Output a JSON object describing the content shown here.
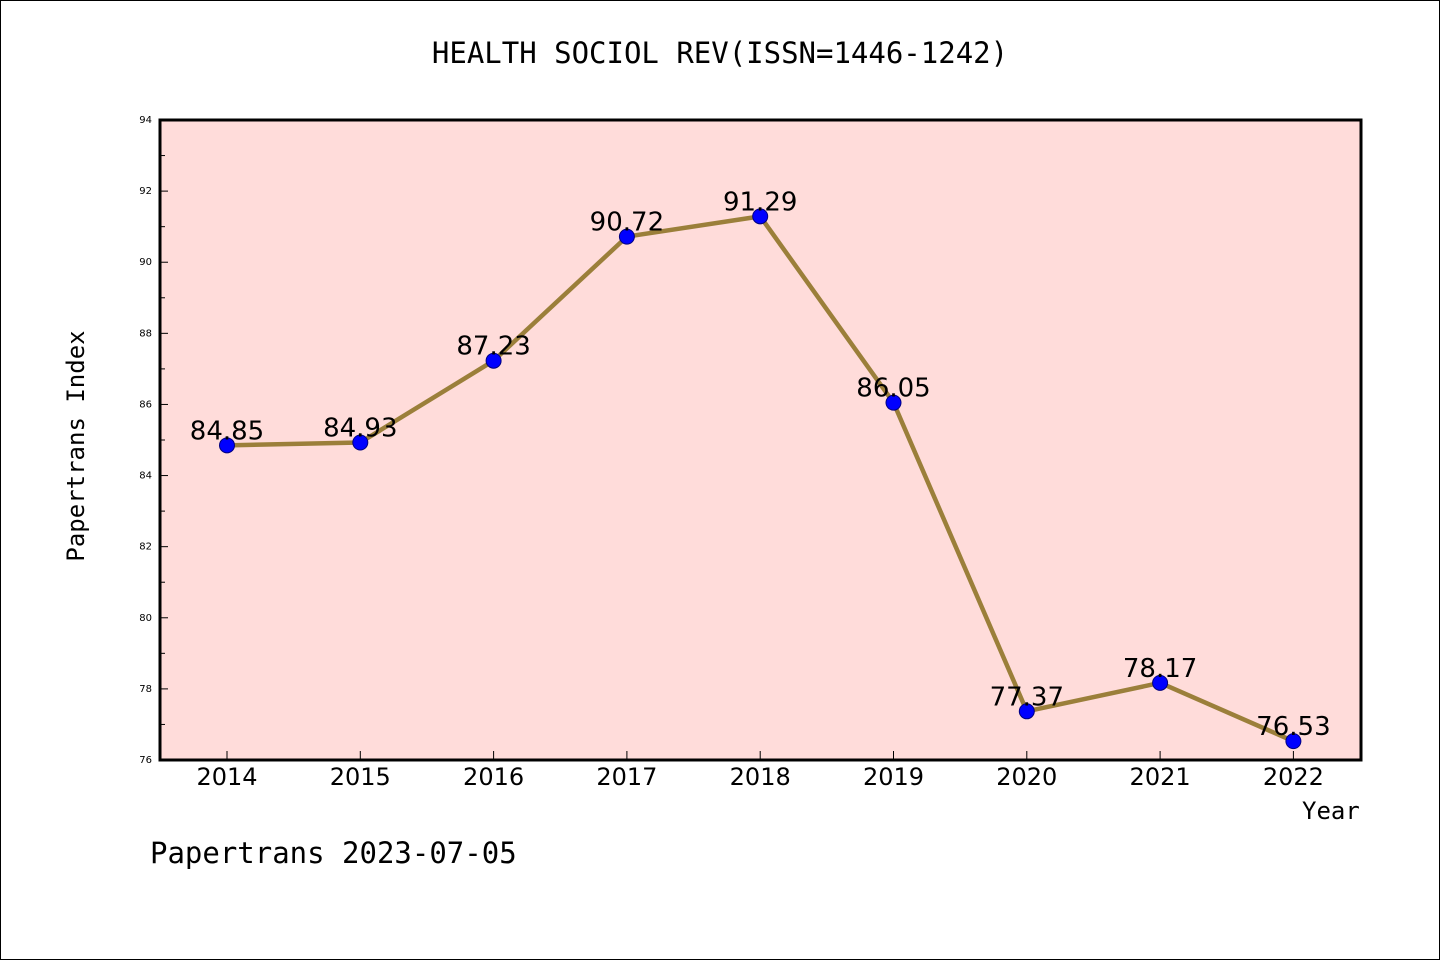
{
  "chart_data": {
    "type": "line",
    "title": "HEALTH SOCIOL REV(ISSN=1446-1242)",
    "xlabel": "Year",
    "ylabel": "Papertrans Index",
    "footer": "Papertrans 2023-07-05",
    "categories": [
      "2014",
      "2015",
      "2016",
      "2017",
      "2018",
      "2019",
      "2020",
      "2021",
      "2022"
    ],
    "series": [
      {
        "values": [
          84.85,
          84.93,
          87.23,
          90.72,
          91.29,
          86.05,
          77.37,
          78.17,
          76.53
        ],
        "labels": [
          "84.85",
          "84.93",
          "87.23",
          "90.72",
          "91.29",
          "86.05",
          "77.37",
          "78.17",
          "76.53"
        ]
      }
    ],
    "ylim": [
      76,
      94
    ],
    "yticks": [
      "76",
      "78",
      "80",
      "82",
      "84",
      "86",
      "88",
      "90",
      "92",
      "94"
    ],
    "grid": false,
    "colors": {
      "plot_background": "#FFDCDA",
      "line": "#9B7F3A",
      "marker": "#0000FF",
      "marker_edge": "#000080"
    }
  }
}
